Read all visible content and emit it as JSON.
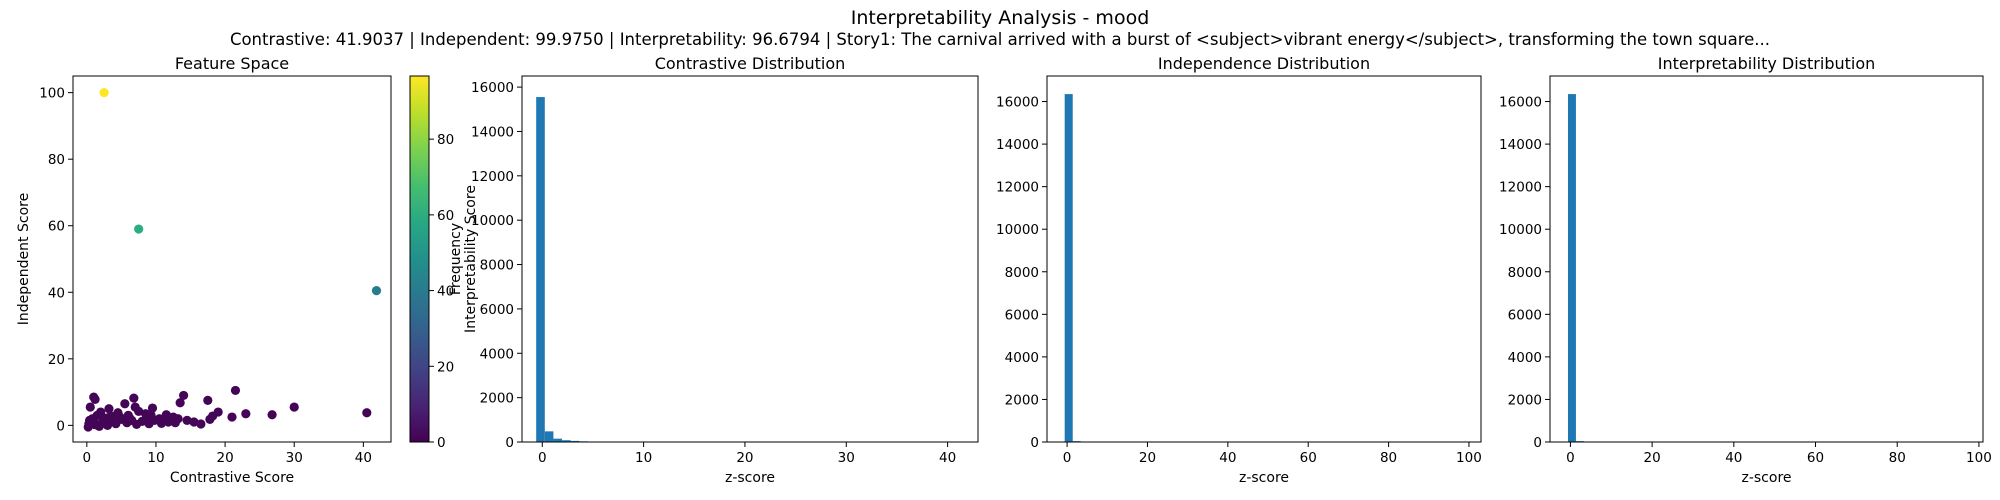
{
  "figure": {
    "title": "Interpretability Analysis - mood",
    "subtitle": "Contrastive: 41.9037 | Independent: 99.9750 | Interpretability: 96.6794 | Story1: The carnival arrived with a burst of <subject>vibrant energy</subject>, transforming the town square..."
  },
  "chart_data": [
    {
      "type": "scatter",
      "title": "Feature Space",
      "xlabel": "Contrastive Score",
      "ylabel": "Independent Score",
      "xlim": [
        -2,
        44
      ],
      "ylim": [
        -5,
        105
      ],
      "xticks": [
        0,
        10,
        20,
        30,
        40
      ],
      "yticks": [
        0,
        20,
        40,
        60,
        80,
        100
      ],
      "colorbar": {
        "label": "Interpretability Score",
        "colormap": "viridis",
        "range": [
          0,
          96.68
        ],
        "ticks": [
          0,
          20,
          40,
          60,
          80
        ]
      },
      "points": [
        {
          "x": 2.5,
          "y": 100,
          "c": 96.7
        },
        {
          "x": 7.5,
          "y": 59,
          "c": 60
        },
        {
          "x": 41.9,
          "y": 40.5,
          "c": 40
        },
        {
          "x": 1.0,
          "y": 8.5,
          "c": 1
        },
        {
          "x": 1.2,
          "y": 7.8,
          "c": 1
        },
        {
          "x": 0.5,
          "y": 5.5,
          "c": 1
        },
        {
          "x": 6.8,
          "y": 8.2,
          "c": 1
        },
        {
          "x": 14.0,
          "y": 9.0,
          "c": 1
        },
        {
          "x": 21.5,
          "y": 10.5,
          "c": 1
        },
        {
          "x": 30.0,
          "y": 5.5,
          "c": 1
        },
        {
          "x": 40.5,
          "y": 3.8,
          "c": 1
        },
        {
          "x": 9.5,
          "y": 5.2,
          "c": 1
        },
        {
          "x": 5.5,
          "y": 6.5,
          "c": 1
        },
        {
          "x": 13.5,
          "y": 6.8,
          "c": 1
        },
        {
          "x": 17.5,
          "y": 7.5,
          "c": 1
        },
        {
          "x": 19.0,
          "y": 4.0,
          "c": 1
        },
        {
          "x": 21.0,
          "y": 2.5,
          "c": 1
        },
        {
          "x": 23.0,
          "y": 3.5,
          "c": 1
        },
        {
          "x": 26.8,
          "y": 3.2,
          "c": 1
        },
        {
          "x": 14.5,
          "y": 1.5,
          "c": 1
        },
        {
          "x": 15.5,
          "y": 1.0,
          "c": 1
        },
        {
          "x": 16.5,
          "y": 0.4,
          "c": 1
        },
        {
          "x": 17.8,
          "y": 1.8,
          "c": 1
        },
        {
          "x": 18.2,
          "y": 2.8,
          "c": 1
        },
        {
          "x": 12.5,
          "y": 2.5,
          "c": 1
        },
        {
          "x": 11.5,
          "y": 3.2,
          "c": 1
        },
        {
          "x": 10.5,
          "y": 2.0,
          "c": 1
        },
        {
          "x": 8.5,
          "y": 3.5,
          "c": 1
        },
        {
          "x": 7.5,
          "y": 4.2,
          "c": 1
        },
        {
          "x": 6.0,
          "y": 3.0,
          "c": 1
        },
        {
          "x": 4.5,
          "y": 3.8,
          "c": 1
        },
        {
          "x": 3.5,
          "y": 2.8,
          "c": 1
        },
        {
          "x": 2.5,
          "y": 1.5,
          "c": 1
        },
        {
          "x": 1.5,
          "y": 3.0,
          "c": 1
        },
        {
          "x": 0.8,
          "y": 2.0,
          "c": 1
        },
        {
          "x": 0.3,
          "y": 0.5,
          "c": 1
        },
        {
          "x": 0.2,
          "y": -0.5,
          "c": 1
        },
        {
          "x": 0.6,
          "y": 1.0,
          "c": 1
        },
        {
          "x": 1.2,
          "y": 0.2,
          "c": 1
        },
        {
          "x": 1.8,
          "y": -0.3,
          "c": 1
        },
        {
          "x": 2.2,
          "y": 0.8,
          "c": 1
        },
        {
          "x": 3.0,
          "y": 0.0,
          "c": 1
        },
        {
          "x": 3.8,
          "y": 1.2,
          "c": 1
        },
        {
          "x": 4.2,
          "y": 0.5,
          "c": 1
        },
        {
          "x": 5.0,
          "y": 1.8,
          "c": 1
        },
        {
          "x": 5.8,
          "y": 0.8,
          "c": 1
        },
        {
          "x": 6.5,
          "y": 1.5,
          "c": 1
        },
        {
          "x": 7.2,
          "y": 0.3,
          "c": 1
        },
        {
          "x": 8.0,
          "y": 1.2,
          "c": 1
        },
        {
          "x": 9.0,
          "y": 0.5,
          "c": 1
        },
        {
          "x": 9.8,
          "y": 1.5,
          "c": 1
        },
        {
          "x": 10.8,
          "y": 0.6,
          "c": 1
        },
        {
          "x": 11.8,
          "y": 1.0,
          "c": 1
        },
        {
          "x": 12.8,
          "y": 0.8,
          "c": 1
        },
        {
          "x": 13.2,
          "y": 2.0,
          "c": 1
        },
        {
          "x": 0.4,
          "y": 1.5,
          "c": 1
        },
        {
          "x": 1.0,
          "y": 1.2,
          "c": 1
        },
        {
          "x": 2.8,
          "y": 2.2,
          "c": 1
        },
        {
          "x": 4.8,
          "y": 2.5,
          "c": 1
        },
        {
          "x": 6.2,
          "y": 2.2,
          "c": 1
        },
        {
          "x": 8.8,
          "y": 2.6,
          "c": 1
        },
        {
          "x": 7.0,
          "y": 5.5,
          "c": 1
        },
        {
          "x": 2.0,
          "y": 4.0,
          "c": 1
        },
        {
          "x": 3.2,
          "y": 5.0,
          "c": 1
        },
        {
          "x": 9.3,
          "y": 3.0,
          "c": 1
        },
        {
          "x": 11.0,
          "y": 1.8,
          "c": 1
        }
      ]
    },
    {
      "type": "histogram",
      "title": "Contrastive Distribution",
      "xlabel": "z-score",
      "ylabel": "Frequency",
      "xlim": [
        -2,
        43
      ],
      "ylim": [
        0,
        16500
      ],
      "xticks": [
        0,
        10,
        20,
        30,
        40
      ],
      "yticks": [
        0,
        2000,
        4000,
        6000,
        8000,
        10000,
        12000,
        14000,
        16000
      ],
      "bin_start": -0.6,
      "bin_width": 0.85,
      "counts": [
        15550,
        480,
        150,
        80,
        50,
        30,
        20,
        15,
        10,
        8,
        6,
        5,
        4,
        3,
        3,
        2,
        2,
        2,
        2,
        1,
        1,
        1,
        1,
        1,
        1,
        1,
        1,
        1,
        1,
        1,
        1,
        1,
        1,
        1,
        1,
        1,
        1,
        1,
        1,
        1,
        1,
        1,
        1,
        1,
        1,
        1,
        1,
        1,
        1,
        1
      ]
    },
    {
      "type": "histogram",
      "title": "Independence Distribution",
      "xlabel": "z-score",
      "ylabel": "",
      "xlim": [
        -5,
        103
      ],
      "ylim": [
        0,
        17200
      ],
      "xticks": [
        0,
        20,
        40,
        60,
        80,
        100
      ],
      "yticks": [
        0,
        2000,
        4000,
        6000,
        8000,
        10000,
        12000,
        14000,
        16000
      ],
      "bin_start": -0.6,
      "bin_width": 2.0,
      "counts": [
        16350,
        40,
        8,
        4,
        2,
        1,
        1,
        1,
        1,
        1,
        1,
        1,
        1,
        1,
        1,
        1,
        1,
        1,
        1,
        1,
        1,
        1,
        1,
        1,
        1,
        1,
        1,
        1,
        1,
        1,
        1,
        1,
        1,
        1,
        1,
        1,
        1,
        1,
        1,
        1,
        1,
        1,
        1,
        1,
        1,
        1,
        1,
        1,
        1,
        1
      ]
    },
    {
      "type": "histogram",
      "title": "Interpretability Distribution",
      "xlabel": "z-score",
      "ylabel": "",
      "xlim": [
        -5,
        101
      ],
      "ylim": [
        0,
        17200
      ],
      "xticks": [
        0,
        20,
        40,
        60,
        80,
        100
      ],
      "yticks": [
        0,
        2000,
        4000,
        6000,
        8000,
        10000,
        12000,
        14000,
        16000
      ],
      "bin_start": -0.6,
      "bin_width": 1.95,
      "counts": [
        16350,
        40,
        8,
        4,
        2,
        1,
        1,
        1,
        1,
        1,
        1,
        1,
        1,
        1,
        1,
        1,
        1,
        1,
        1,
        1,
        1,
        1,
        1,
        1,
        1,
        1,
        1,
        1,
        1,
        1,
        1,
        1,
        1,
        1,
        1,
        1,
        1,
        1,
        1,
        1,
        1,
        1,
        1,
        1,
        1,
        1,
        1,
        1,
        1,
        1
      ]
    }
  ]
}
